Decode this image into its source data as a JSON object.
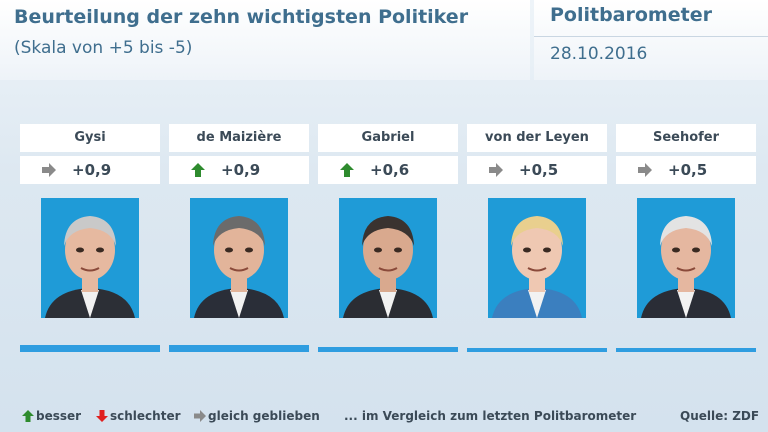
{
  "header": {
    "title": "Beurteilung der zehn wichtigsten Politiker",
    "subtitle": "(Skala von +5 bis -5)",
    "brand": "Politbarometer",
    "date": "28.10.2016"
  },
  "colors": {
    "up": "#2e8b2e",
    "down": "#e02020",
    "same": "#8a8a8a",
    "bar": "#2f9de0",
    "title": "#3f6e8e"
  },
  "chart_data": {
    "type": "bar",
    "title": "Beurteilung der zehn wichtigsten Politiker",
    "subtitle": "(Skala von +5 bis -5)",
    "ylim": [
      -5,
      5
    ],
    "categories": [
      "Gysi",
      "de Maizière",
      "Gabriel",
      "von der Leyen",
      "Seehofer"
    ],
    "values": [
      0.9,
      0.9,
      0.6,
      0.5,
      0.5
    ],
    "value_labels": [
      "+0,9",
      "+0,9",
      "+0,6",
      "+0,5",
      "+0,5"
    ],
    "trend": [
      "same",
      "up",
      "up",
      "same",
      "same"
    ]
  },
  "legend": {
    "up": "besser",
    "down": "schlechter",
    "same": "gleich geblieben",
    "note": "... im Vergleich zum letzten Politbarometer",
    "source": "Quelle: ZDF"
  }
}
